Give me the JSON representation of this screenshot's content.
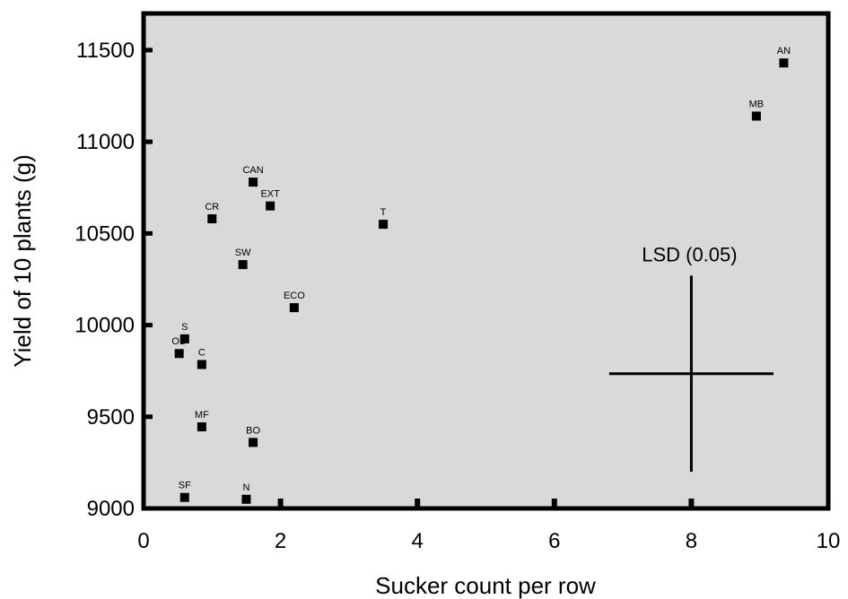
{
  "chart_data": {
    "type": "scatter",
    "xlabel": "Sucker count per row",
    "ylabel": "Yield of 10 plants (g)",
    "xlim": [
      0,
      10
    ],
    "ylim": [
      9000,
      11700
    ],
    "xticks": [
      0,
      2,
      4,
      6,
      8,
      10
    ],
    "yticks": [
      9000,
      9500,
      10000,
      10500,
      11000,
      11500
    ],
    "grid": false,
    "background": "#d9d9d9",
    "marker_color": "#000000",
    "points": [
      {
        "label": "AN",
        "x": 9.35,
        "y": 11430
      },
      {
        "label": "MB",
        "x": 8.95,
        "y": 11140
      },
      {
        "label": "CAN",
        "x": 1.6,
        "y": 10780
      },
      {
        "label": "EXT",
        "x": 1.85,
        "y": 10650
      },
      {
        "label": "CR",
        "x": 1.0,
        "y": 10580
      },
      {
        "label": "T",
        "x": 3.5,
        "y": 10550
      },
      {
        "label": "SW",
        "x": 1.45,
        "y": 10330
      },
      {
        "label": "ECO",
        "x": 2.2,
        "y": 10095
      },
      {
        "label": "S",
        "x": 0.6,
        "y": 9925
      },
      {
        "label": "OD",
        "x": 0.52,
        "y": 9845
      },
      {
        "label": "C",
        "x": 0.85,
        "y": 9785
      },
      {
        "label": "MF",
        "x": 0.85,
        "y": 9445
      },
      {
        "label": "BO",
        "x": 1.6,
        "y": 9360
      },
      {
        "label": "SF",
        "x": 0.6,
        "y": 9060
      },
      {
        "label": "N",
        "x": 1.5,
        "y": 9050
      }
    ],
    "annotation": {
      "text": "LSD (0.05)",
      "center": {
        "x": 8.0,
        "y": 9735
      },
      "x_range": [
        6.8,
        9.2
      ],
      "y_range": [
        9200,
        10270
      ]
    }
  }
}
